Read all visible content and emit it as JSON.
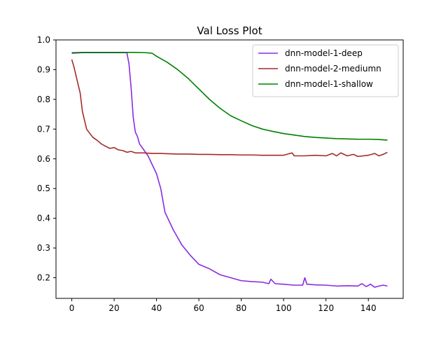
{
  "chart_data": {
    "type": "line",
    "title": "Val Loss Plot",
    "xlabel": "",
    "ylabel": "",
    "xlim": [
      -7.45,
      156.45
    ],
    "ylim": [
      0.1305,
      1.0
    ],
    "xticks": [
      0,
      20,
      40,
      60,
      80,
      100,
      120,
      140
    ],
    "yticks": [
      0.2,
      0.3,
      0.4,
      0.5,
      0.6,
      0.7,
      0.8,
      0.9,
      1.0
    ],
    "xtick_labels": [
      "0",
      "20",
      "40",
      "60",
      "80",
      "100",
      "120",
      "140"
    ],
    "ytick_labels": [
      "0.2",
      "0.3",
      "0.4",
      "0.5",
      "0.6",
      "0.7",
      "0.8",
      "0.9",
      "1.0"
    ],
    "grid": false,
    "legend": "top-right",
    "series": [
      {
        "name": "dnn-model-1-deep",
        "color": "#8a2be2",
        "x": [
          0,
          5,
          10,
          15,
          20,
          25,
          26,
          27,
          28,
          29,
          30,
          31,
          32,
          34,
          36,
          38,
          40,
          42,
          44,
          48,
          52,
          56,
          60,
          65,
          70,
          75,
          80,
          85,
          90,
          93,
          94,
          96,
          100,
          105,
          109,
          110,
          111,
          115,
          120,
          125,
          130,
          135,
          137,
          139,
          141,
          143,
          145,
          147,
          149
        ],
        "y": [
          0.955,
          0.957,
          0.957,
          0.957,
          0.957,
          0.957,
          0.957,
          0.92,
          0.84,
          0.74,
          0.69,
          0.675,
          0.65,
          0.63,
          0.61,
          0.58,
          0.55,
          0.5,
          0.42,
          0.36,
          0.31,
          0.275,
          0.245,
          0.23,
          0.21,
          0.2,
          0.19,
          0.187,
          0.185,
          0.18,
          0.195,
          0.18,
          0.178,
          0.175,
          0.175,
          0.2,
          0.178,
          0.176,
          0.175,
          0.172,
          0.173,
          0.172,
          0.18,
          0.17,
          0.178,
          0.168,
          0.172,
          0.175,
          0.172
        ]
      },
      {
        "name": "dnn-model-2-mediumn",
        "color": "#a52a2a",
        "x": [
          0,
          1,
          2,
          3,
          4,
          5,
          6,
          7,
          8,
          10,
          12,
          14,
          16,
          18,
          20,
          22,
          24,
          26,
          28,
          30,
          34,
          38,
          42,
          46,
          50,
          55,
          60,
          65,
          70,
          75,
          80,
          85,
          90,
          95,
          100,
          104,
          105,
          110,
          115,
          120,
          123,
          125,
          127,
          130,
          133,
          135,
          140,
          143,
          145,
          147,
          149
        ],
        "y": [
          0.934,
          0.91,
          0.88,
          0.85,
          0.82,
          0.76,
          0.73,
          0.7,
          0.69,
          0.672,
          0.662,
          0.65,
          0.642,
          0.635,
          0.638,
          0.63,
          0.628,
          0.622,
          0.625,
          0.62,
          0.62,
          0.618,
          0.618,
          0.617,
          0.616,
          0.616,
          0.615,
          0.615,
          0.614,
          0.614,
          0.613,
          0.613,
          0.612,
          0.612,
          0.612,
          0.62,
          0.61,
          0.61,
          0.612,
          0.61,
          0.618,
          0.61,
          0.62,
          0.61,
          0.615,
          0.608,
          0.612,
          0.618,
          0.61,
          0.615,
          0.622
        ]
      },
      {
        "name": "dnn-model-1-shallow",
        "color": "#008000",
        "x": [
          0,
          5,
          10,
          15,
          20,
          25,
          30,
          35,
          38,
          40,
          45,
          50,
          55,
          60,
          65,
          70,
          75,
          80,
          85,
          90,
          95,
          100,
          105,
          110,
          115,
          120,
          125,
          130,
          135,
          140,
          145,
          149
        ],
        "y": [
          0.957,
          0.958,
          0.958,
          0.958,
          0.958,
          0.958,
          0.958,
          0.957,
          0.955,
          0.945,
          0.925,
          0.9,
          0.87,
          0.835,
          0.8,
          0.77,
          0.745,
          0.728,
          0.712,
          0.7,
          0.692,
          0.685,
          0.68,
          0.675,
          0.672,
          0.67,
          0.668,
          0.667,
          0.666,
          0.666,
          0.665,
          0.663
        ]
      }
    ]
  }
}
